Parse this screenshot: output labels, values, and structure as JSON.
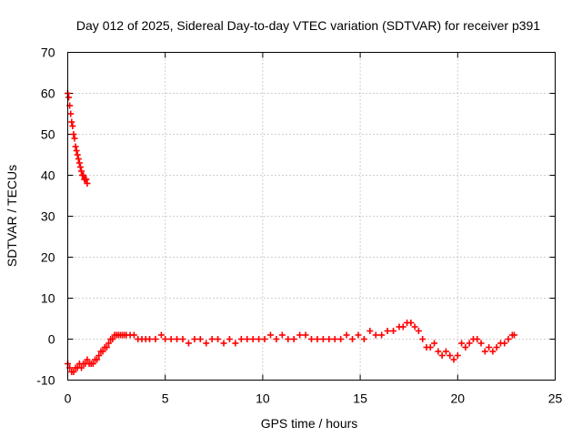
{
  "chart_data": {
    "type": "scatter",
    "title": "Day 012 of 2025, Sidereal Day-to-day VTEC variation (SDTVAR) for receiver p391",
    "xlabel": "GPS time / hours",
    "ylabel": "SDTVAR / TECUs",
    "xlim": [
      0,
      25
    ],
    "ylim": [
      -10,
      70
    ],
    "xticks": [
      "0",
      "5",
      "10",
      "15",
      "20",
      "25"
    ],
    "yticks": [
      "-10",
      "0",
      "10",
      "20",
      "30",
      "40",
      "50",
      "60",
      "70"
    ],
    "grid": true,
    "series": [
      {
        "name": "SDTVAR",
        "color": "#ff0000",
        "marker": "plus",
        "x": [
          0.0,
          0.05,
          0.1,
          0.15,
          0.2,
          0.25,
          0.3,
          0.35,
          0.4,
          0.45,
          0.5,
          0.55,
          0.6,
          0.65,
          0.7,
          0.75,
          0.8,
          0.85,
          0.9,
          0.95,
          1.0,
          0.0,
          0.1,
          0.2,
          0.3,
          0.4,
          0.5,
          0.6,
          0.7,
          0.8,
          0.9,
          1.0,
          1.1,
          1.2,
          1.3,
          1.4,
          1.5,
          1.6,
          1.7,
          1.8,
          1.9,
          2.0,
          2.1,
          2.2,
          2.3,
          2.4,
          2.5,
          2.6,
          2.7,
          2.8,
          2.9,
          3.0,
          3.2,
          3.4,
          3.6,
          3.8,
          4.0,
          4.2,
          4.5,
          4.8,
          5.0,
          5.3,
          5.6,
          5.9,
          6.2,
          6.5,
          6.8,
          7.1,
          7.4,
          7.7,
          8.0,
          8.3,
          8.6,
          8.9,
          9.2,
          9.5,
          9.8,
          10.1,
          10.4,
          10.7,
          11.0,
          11.3,
          11.6,
          11.9,
          12.2,
          12.5,
          12.8,
          13.1,
          13.4,
          13.7,
          14.0,
          14.3,
          14.6,
          14.9,
          15.2,
          15.5,
          15.8,
          16.1,
          16.4,
          16.7,
          17.0,
          17.2,
          17.4,
          17.6,
          17.8,
          18.0,
          18.2,
          18.4,
          18.6,
          18.8,
          19.0,
          19.2,
          19.4,
          19.6,
          19.8,
          20.0,
          20.2,
          20.4,
          20.6,
          20.8,
          21.0,
          21.2,
          21.4,
          21.6,
          21.8,
          22.0,
          22.2,
          22.4,
          22.6,
          22.8,
          22.9
        ],
        "y": [
          60,
          59,
          57,
          55,
          53,
          52,
          50,
          49,
          47,
          46,
          45,
          44,
          43,
          42,
          41,
          40,
          40,
          39,
          39,
          39,
          38,
          -6,
          -7,
          -8,
          -8,
          -7,
          -7,
          -6,
          -7,
          -6,
          -6,
          -5,
          -6,
          -6,
          -6,
          -5,
          -5,
          -4,
          -3,
          -3,
          -2,
          -2,
          -1,
          0,
          0,
          1,
          1,
          1,
          1,
          1,
          1,
          1,
          1,
          1,
          0,
          0,
          0,
          0,
          0,
          1,
          0,
          0,
          0,
          0,
          -1,
          0,
          0,
          -1,
          0,
          0,
          -1,
          0,
          -1,
          0,
          0,
          0,
          0,
          0,
          1,
          0,
          1,
          0,
          0,
          1,
          1,
          0,
          0,
          0,
          0,
          0,
          0,
          1,
          0,
          1,
          0,
          2,
          1,
          1,
          2,
          2,
          3,
          3,
          4,
          4,
          3,
          2,
          0,
          -2,
          -2,
          -1,
          -3,
          -4,
          -3,
          -4,
          -5,
          -4,
          -1,
          -2,
          -1,
          0,
          0,
          -1,
          -3,
          -2,
          -3,
          -2,
          -1,
          -1,
          0,
          1,
          1
        ]
      }
    ]
  }
}
